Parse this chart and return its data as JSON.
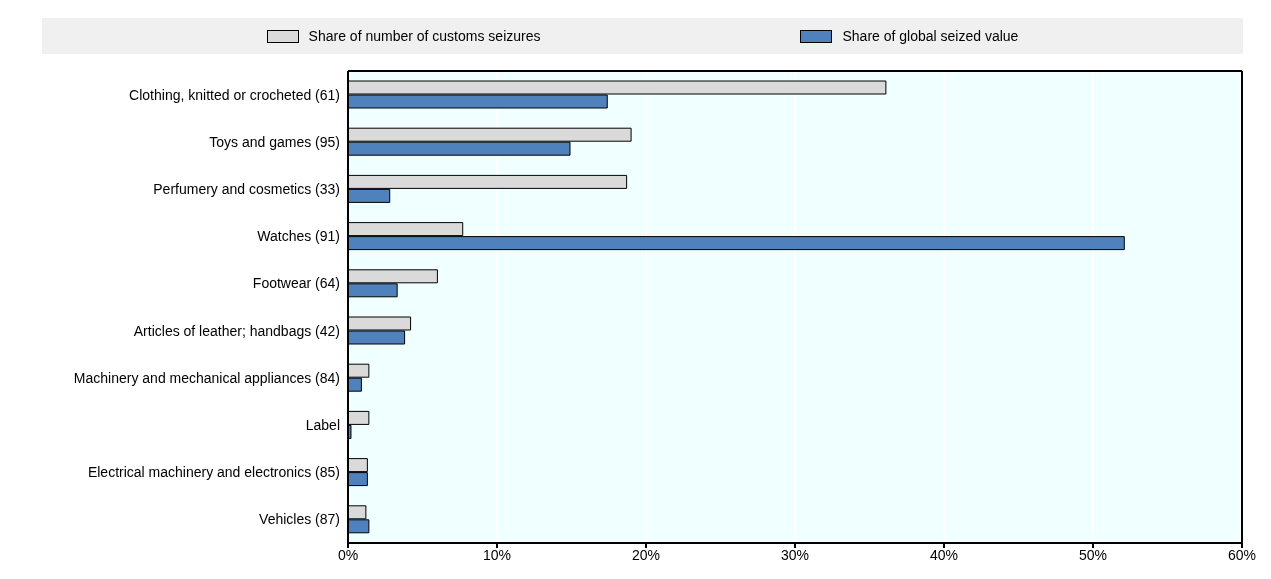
{
  "chart_data": {
    "type": "bar",
    "orientation": "horizontal",
    "categories": [
      "Clothing, knitted or crocheted (61)",
      "Toys and games (95)",
      "Perfumery and cosmetics (33)",
      "Watches (91)",
      "Footwear (64)",
      "Articles of leather; handbags (42)",
      "Machinery and mechanical appliances (84)",
      "Label",
      "Electrical machinery and electronics (85)",
      "Vehicles (87)"
    ],
    "series": [
      {
        "name": "Share of number of customs seizures",
        "color": "#dadada",
        "values": [
          36.1,
          19.0,
          18.7,
          7.7,
          6.0,
          4.2,
          1.4,
          1.4,
          1.3,
          1.2
        ]
      },
      {
        "name": "Share of global seized value",
        "color": "#4f81bd",
        "values": [
          17.4,
          14.9,
          2.8,
          52.1,
          3.3,
          3.8,
          0.9,
          0.2,
          1.3,
          1.4
        ]
      }
    ],
    "xlim": [
      0,
      60
    ],
    "xticks": [
      {
        "value": 0,
        "label": "0%"
      },
      {
        "value": 10,
        "label": "10%"
      },
      {
        "value": 20,
        "label": "20%"
      },
      {
        "value": 30,
        "label": "30%"
      },
      {
        "value": 40,
        "label": "40%"
      },
      {
        "value": 50,
        "label": "50%"
      },
      {
        "value": 60,
        "label": "60%"
      }
    ],
    "grid": "x",
    "legend": "top"
  }
}
